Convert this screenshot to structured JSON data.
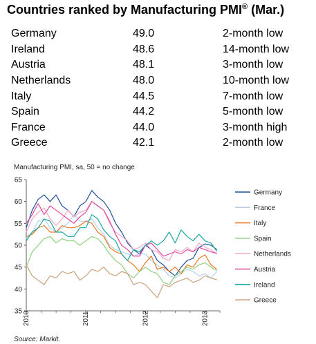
{
  "header": {
    "title": "Countries ranked by Manufacturing PMI",
    "title_sup": "®",
    "title_suffix": " (Mar.)"
  },
  "ranking": [
    {
      "country": "Germany",
      "pmi": "49.0",
      "note": "2-month low"
    },
    {
      "country": "Ireland",
      "pmi": "48.6",
      "note": "14-month low"
    },
    {
      "country": "Austria",
      "pmi": "48.1",
      "note": "3-month low"
    },
    {
      "country": "Netherlands",
      "pmi": "48.0",
      "note": "10-month low"
    },
    {
      "country": "Italy",
      "pmi": "44.5",
      "note": "7-month low"
    },
    {
      "country": "Spain",
      "pmi": "44.2",
      "note": "5-month low"
    },
    {
      "country": "France",
      "pmi": "44.0",
      "note": "3-month high"
    },
    {
      "country": "Greece",
      "pmi": "42.1",
      "note": "2-month low"
    }
  ],
  "chart_data": {
    "type": "line",
    "subtitle": "Manufacturing PMI, sa, 50 = no change",
    "source": "Source: Markit.",
    "xlim": [
      2010.0,
      2013.25
    ],
    "ylim": [
      35,
      65
    ],
    "yticks": [
      35,
      40,
      45,
      50,
      55,
      60,
      65
    ],
    "xticks": [
      {
        "x": 2010,
        "label": "2010"
      },
      {
        "x": 2011,
        "label": "2011"
      },
      {
        "x": 2012,
        "label": "2012"
      },
      {
        "x": 2013,
        "label": "2013"
      }
    ],
    "grid": false,
    "legend_position": "right",
    "series": [
      {
        "name": "Germany",
        "color": "#1f4e9c",
        "points": [
          [
            2010.0,
            54
          ],
          [
            2010.1,
            58
          ],
          [
            2010.2,
            60.5
          ],
          [
            2010.3,
            61.5
          ],
          [
            2010.4,
            60
          ],
          [
            2010.5,
            61.5
          ],
          [
            2010.6,
            59
          ],
          [
            2010.7,
            58
          ],
          [
            2010.8,
            56.5
          ],
          [
            2010.9,
            59
          ],
          [
            2011.0,
            60
          ],
          [
            2011.1,
            62.5
          ],
          [
            2011.2,
            61
          ],
          [
            2011.3,
            60
          ],
          [
            2011.4,
            58
          ],
          [
            2011.5,
            55
          ],
          [
            2011.6,
            53
          ],
          [
            2011.7,
            50.5
          ],
          [
            2011.8,
            49
          ],
          [
            2011.9,
            48
          ],
          [
            2012.0,
            50
          ],
          [
            2012.1,
            49
          ],
          [
            2012.2,
            46.5
          ],
          [
            2012.3,
            45.5
          ],
          [
            2012.4,
            44
          ],
          [
            2012.5,
            43
          ],
          [
            2012.6,
            45
          ],
          [
            2012.7,
            46.5
          ],
          [
            2012.8,
            47
          ],
          [
            2012.9,
            49.5
          ],
          [
            2013.0,
            50.3
          ],
          [
            2013.1,
            50
          ],
          [
            2013.2,
            49
          ]
        ]
      },
      {
        "name": "France",
        "color": "#b9cfe8",
        "points": [
          [
            2010.0,
            51.5
          ],
          [
            2010.1,
            53
          ],
          [
            2010.2,
            55.5
          ],
          [
            2010.3,
            56
          ],
          [
            2010.4,
            54
          ],
          [
            2010.5,
            53
          ],
          [
            2010.6,
            54
          ],
          [
            2010.7,
            55
          ],
          [
            2010.8,
            57
          ],
          [
            2010.9,
            55.5
          ],
          [
            2011.0,
            55.5
          ],
          [
            2011.1,
            56
          ],
          [
            2011.2,
            54
          ],
          [
            2011.3,
            52.5
          ],
          [
            2011.4,
            50
          ],
          [
            2011.5,
            49
          ],
          [
            2011.6,
            48.5
          ],
          [
            2011.7,
            48
          ],
          [
            2011.8,
            47.5
          ],
          [
            2011.9,
            48
          ],
          [
            2012.0,
            48
          ],
          [
            2012.1,
            46.5
          ],
          [
            2012.2,
            45.5
          ],
          [
            2012.3,
            44.5
          ],
          [
            2012.4,
            43
          ],
          [
            2012.5,
            42.5
          ],
          [
            2012.6,
            43.5
          ],
          [
            2012.7,
            44.5
          ],
          [
            2012.8,
            44
          ],
          [
            2012.9,
            43
          ],
          [
            2013.0,
            43.5
          ],
          [
            2013.1,
            42.5
          ],
          [
            2013.2,
            44
          ]
        ]
      },
      {
        "name": "Italy",
        "color": "#e87722",
        "points": [
          [
            2010.0,
            52
          ],
          [
            2010.1,
            52.5
          ],
          [
            2010.2,
            54
          ],
          [
            2010.3,
            54.5
          ],
          [
            2010.4,
            53
          ],
          [
            2010.5,
            53
          ],
          [
            2010.6,
            54.5
          ],
          [
            2010.7,
            54
          ],
          [
            2010.8,
            54
          ],
          [
            2010.9,
            54.5
          ],
          [
            2011.0,
            55.5
          ],
          [
            2011.1,
            55
          ],
          [
            2011.2,
            53
          ],
          [
            2011.3,
            52
          ],
          [
            2011.4,
            49.5
          ],
          [
            2011.5,
            48.5
          ],
          [
            2011.6,
            48
          ],
          [
            2011.7,
            46.5
          ],
          [
            2011.8,
            45.5
          ],
          [
            2011.9,
            44
          ],
          [
            2012.0,
            46
          ],
          [
            2012.1,
            47.5
          ],
          [
            2012.2,
            44.5
          ],
          [
            2012.3,
            45
          ],
          [
            2012.4,
            44
          ],
          [
            2012.5,
            45
          ],
          [
            2012.6,
            43.5
          ],
          [
            2012.7,
            45.5
          ],
          [
            2012.8,
            45
          ],
          [
            2012.9,
            47
          ],
          [
            2013.0,
            47.8
          ],
          [
            2013.1,
            45.5
          ],
          [
            2013.2,
            44.5
          ]
        ]
      },
      {
        "name": "Spain",
        "color": "#8cd17d",
        "points": [
          [
            2010.0,
            45
          ],
          [
            2010.1,
            48.5
          ],
          [
            2010.2,
            50
          ],
          [
            2010.3,
            51.5
          ],
          [
            2010.4,
            52
          ],
          [
            2010.5,
            50.5
          ],
          [
            2010.6,
            51.5
          ],
          [
            2010.7,
            51
          ],
          [
            2010.8,
            51
          ],
          [
            2010.9,
            50
          ],
          [
            2011.0,
            51
          ],
          [
            2011.1,
            52
          ],
          [
            2011.2,
            51.5
          ],
          [
            2011.3,
            50
          ],
          [
            2011.4,
            48
          ],
          [
            2011.5,
            46.5
          ],
          [
            2011.6,
            45.5
          ],
          [
            2011.7,
            43.5
          ],
          [
            2011.8,
            42.5
          ],
          [
            2011.9,
            44
          ],
          [
            2012.0,
            45
          ],
          [
            2012.1,
            44
          ],
          [
            2012.2,
            43.5
          ],
          [
            2012.3,
            41.5
          ],
          [
            2012.4,
            41
          ],
          [
            2012.5,
            43
          ],
          [
            2012.6,
            44
          ],
          [
            2012.7,
            45
          ],
          [
            2012.8,
            44.5
          ],
          [
            2012.9,
            45.5
          ],
          [
            2013.0,
            46
          ],
          [
            2013.1,
            45
          ],
          [
            2013.2,
            44.2
          ]
        ]
      },
      {
        "name": "Netherlands",
        "color": "#f4a7c3",
        "points": [
          [
            2010.0,
            53
          ],
          [
            2010.1,
            56
          ],
          [
            2010.2,
            57.5
          ],
          [
            2010.3,
            58.5
          ],
          [
            2010.4,
            56
          ],
          [
            2010.5,
            54.5
          ],
          [
            2010.6,
            56
          ],
          [
            2010.7,
            58
          ],
          [
            2010.8,
            56.5
          ],
          [
            2010.9,
            57.5
          ],
          [
            2011.0,
            58
          ],
          [
            2011.1,
            60
          ],
          [
            2011.2,
            59
          ],
          [
            2011.3,
            58
          ],
          [
            2011.4,
            55
          ],
          [
            2011.5,
            53
          ],
          [
            2011.6,
            52
          ],
          [
            2011.7,
            51
          ],
          [
            2011.8,
            49
          ],
          [
            2011.9,
            49.5
          ],
          [
            2012.0,
            50.5
          ],
          [
            2012.1,
            49
          ],
          [
            2012.2,
            48.5
          ],
          [
            2012.3,
            47
          ],
          [
            2012.4,
            46.5
          ],
          [
            2012.5,
            49
          ],
          [
            2012.6,
            48.5
          ],
          [
            2012.7,
            49.5
          ],
          [
            2012.8,
            48.5
          ],
          [
            2012.9,
            50.5
          ],
          [
            2013.0,
            49.5
          ],
          [
            2013.1,
            49
          ],
          [
            2013.2,
            48
          ]
        ]
      },
      {
        "name": "Austria",
        "color": "#e0489e",
        "points": [
          [
            2010.0,
            55
          ],
          [
            2010.1,
            57
          ],
          [
            2010.2,
            59.5
          ],
          [
            2010.3,
            57
          ],
          [
            2010.4,
            59
          ],
          [
            2010.5,
            58
          ],
          [
            2010.6,
            57
          ],
          [
            2010.7,
            56
          ],
          [
            2010.8,
            55
          ],
          [
            2010.9,
            56.5
          ],
          [
            2011.0,
            57.5
          ],
          [
            2011.1,
            60
          ],
          [
            2011.2,
            59
          ],
          [
            2011.3,
            58
          ],
          [
            2011.4,
            55.5
          ],
          [
            2011.5,
            52.5
          ],
          [
            2011.6,
            50
          ],
          [
            2011.7,
            49
          ],
          [
            2011.8,
            47.5
          ],
          [
            2011.9,
            47.5
          ],
          [
            2012.0,
            50
          ],
          [
            2012.1,
            50.5
          ],
          [
            2012.2,
            49
          ],
          [
            2012.3,
            47.5
          ],
          [
            2012.4,
            48
          ],
          [
            2012.5,
            48.5
          ],
          [
            2012.6,
            48
          ],
          [
            2012.7,
            49
          ],
          [
            2012.8,
            48.5
          ],
          [
            2012.9,
            49.5
          ],
          [
            2013.0,
            49
          ],
          [
            2013.1,
            48.5
          ],
          [
            2013.2,
            48.1
          ]
        ]
      },
      {
        "name": "Ireland",
        "color": "#19a6a1",
        "points": [
          [
            2010.0,
            51
          ],
          [
            2010.1,
            53
          ],
          [
            2010.2,
            54
          ],
          [
            2010.3,
            56
          ],
          [
            2010.4,
            55.5
          ],
          [
            2010.5,
            53
          ],
          [
            2010.6,
            53
          ],
          [
            2010.7,
            52
          ],
          [
            2010.8,
            52
          ],
          [
            2010.9,
            54
          ],
          [
            2011.0,
            54
          ],
          [
            2011.1,
            57
          ],
          [
            2011.2,
            56
          ],
          [
            2011.3,
            53.5
          ],
          [
            2011.4,
            52
          ],
          [
            2011.5,
            51
          ],
          [
            2011.6,
            48
          ],
          [
            2011.7,
            46.5
          ],
          [
            2011.8,
            49
          ],
          [
            2011.9,
            48.5
          ],
          [
            2012.0,
            50
          ],
          [
            2012.1,
            51
          ],
          [
            2012.2,
            50
          ],
          [
            2012.3,
            51
          ],
          [
            2012.4,
            53
          ],
          [
            2012.5,
            50.5
          ],
          [
            2012.6,
            53.5
          ],
          [
            2012.7,
            52
          ],
          [
            2012.8,
            51
          ],
          [
            2012.9,
            52.5
          ],
          [
            2013.0,
            51
          ],
          [
            2013.1,
            50.5
          ],
          [
            2013.2,
            48.6
          ]
        ]
      },
      {
        "name": "Greece",
        "color": "#c8a07a",
        "points": [
          [
            2010.0,
            45.5
          ],
          [
            2010.1,
            43
          ],
          [
            2010.2,
            42
          ],
          [
            2010.3,
            41
          ],
          [
            2010.4,
            43
          ],
          [
            2010.5,
            42.5
          ],
          [
            2010.6,
            44
          ],
          [
            2010.7,
            43.5
          ],
          [
            2010.8,
            44
          ],
          [
            2010.9,
            42
          ],
          [
            2011.0,
            43
          ],
          [
            2011.1,
            44.5
          ],
          [
            2011.2,
            44
          ],
          [
            2011.3,
            45
          ],
          [
            2011.4,
            43.5
          ],
          [
            2011.5,
            43
          ],
          [
            2011.6,
            44
          ],
          [
            2011.7,
            43.5
          ],
          [
            2011.8,
            41
          ],
          [
            2011.9,
            41.5
          ],
          [
            2012.0,
            41
          ],
          [
            2012.1,
            39.5
          ],
          [
            2012.2,
            38
          ],
          [
            2012.3,
            41
          ],
          [
            2012.4,
            40.5
          ],
          [
            2012.5,
            41.5
          ],
          [
            2012.6,
            42
          ],
          [
            2012.7,
            42.5
          ],
          [
            2012.8,
            41.5
          ],
          [
            2012.9,
            42
          ],
          [
            2013.0,
            43
          ],
          [
            2013.1,
            42.5
          ],
          [
            2013.2,
            42.1
          ]
        ]
      }
    ]
  }
}
